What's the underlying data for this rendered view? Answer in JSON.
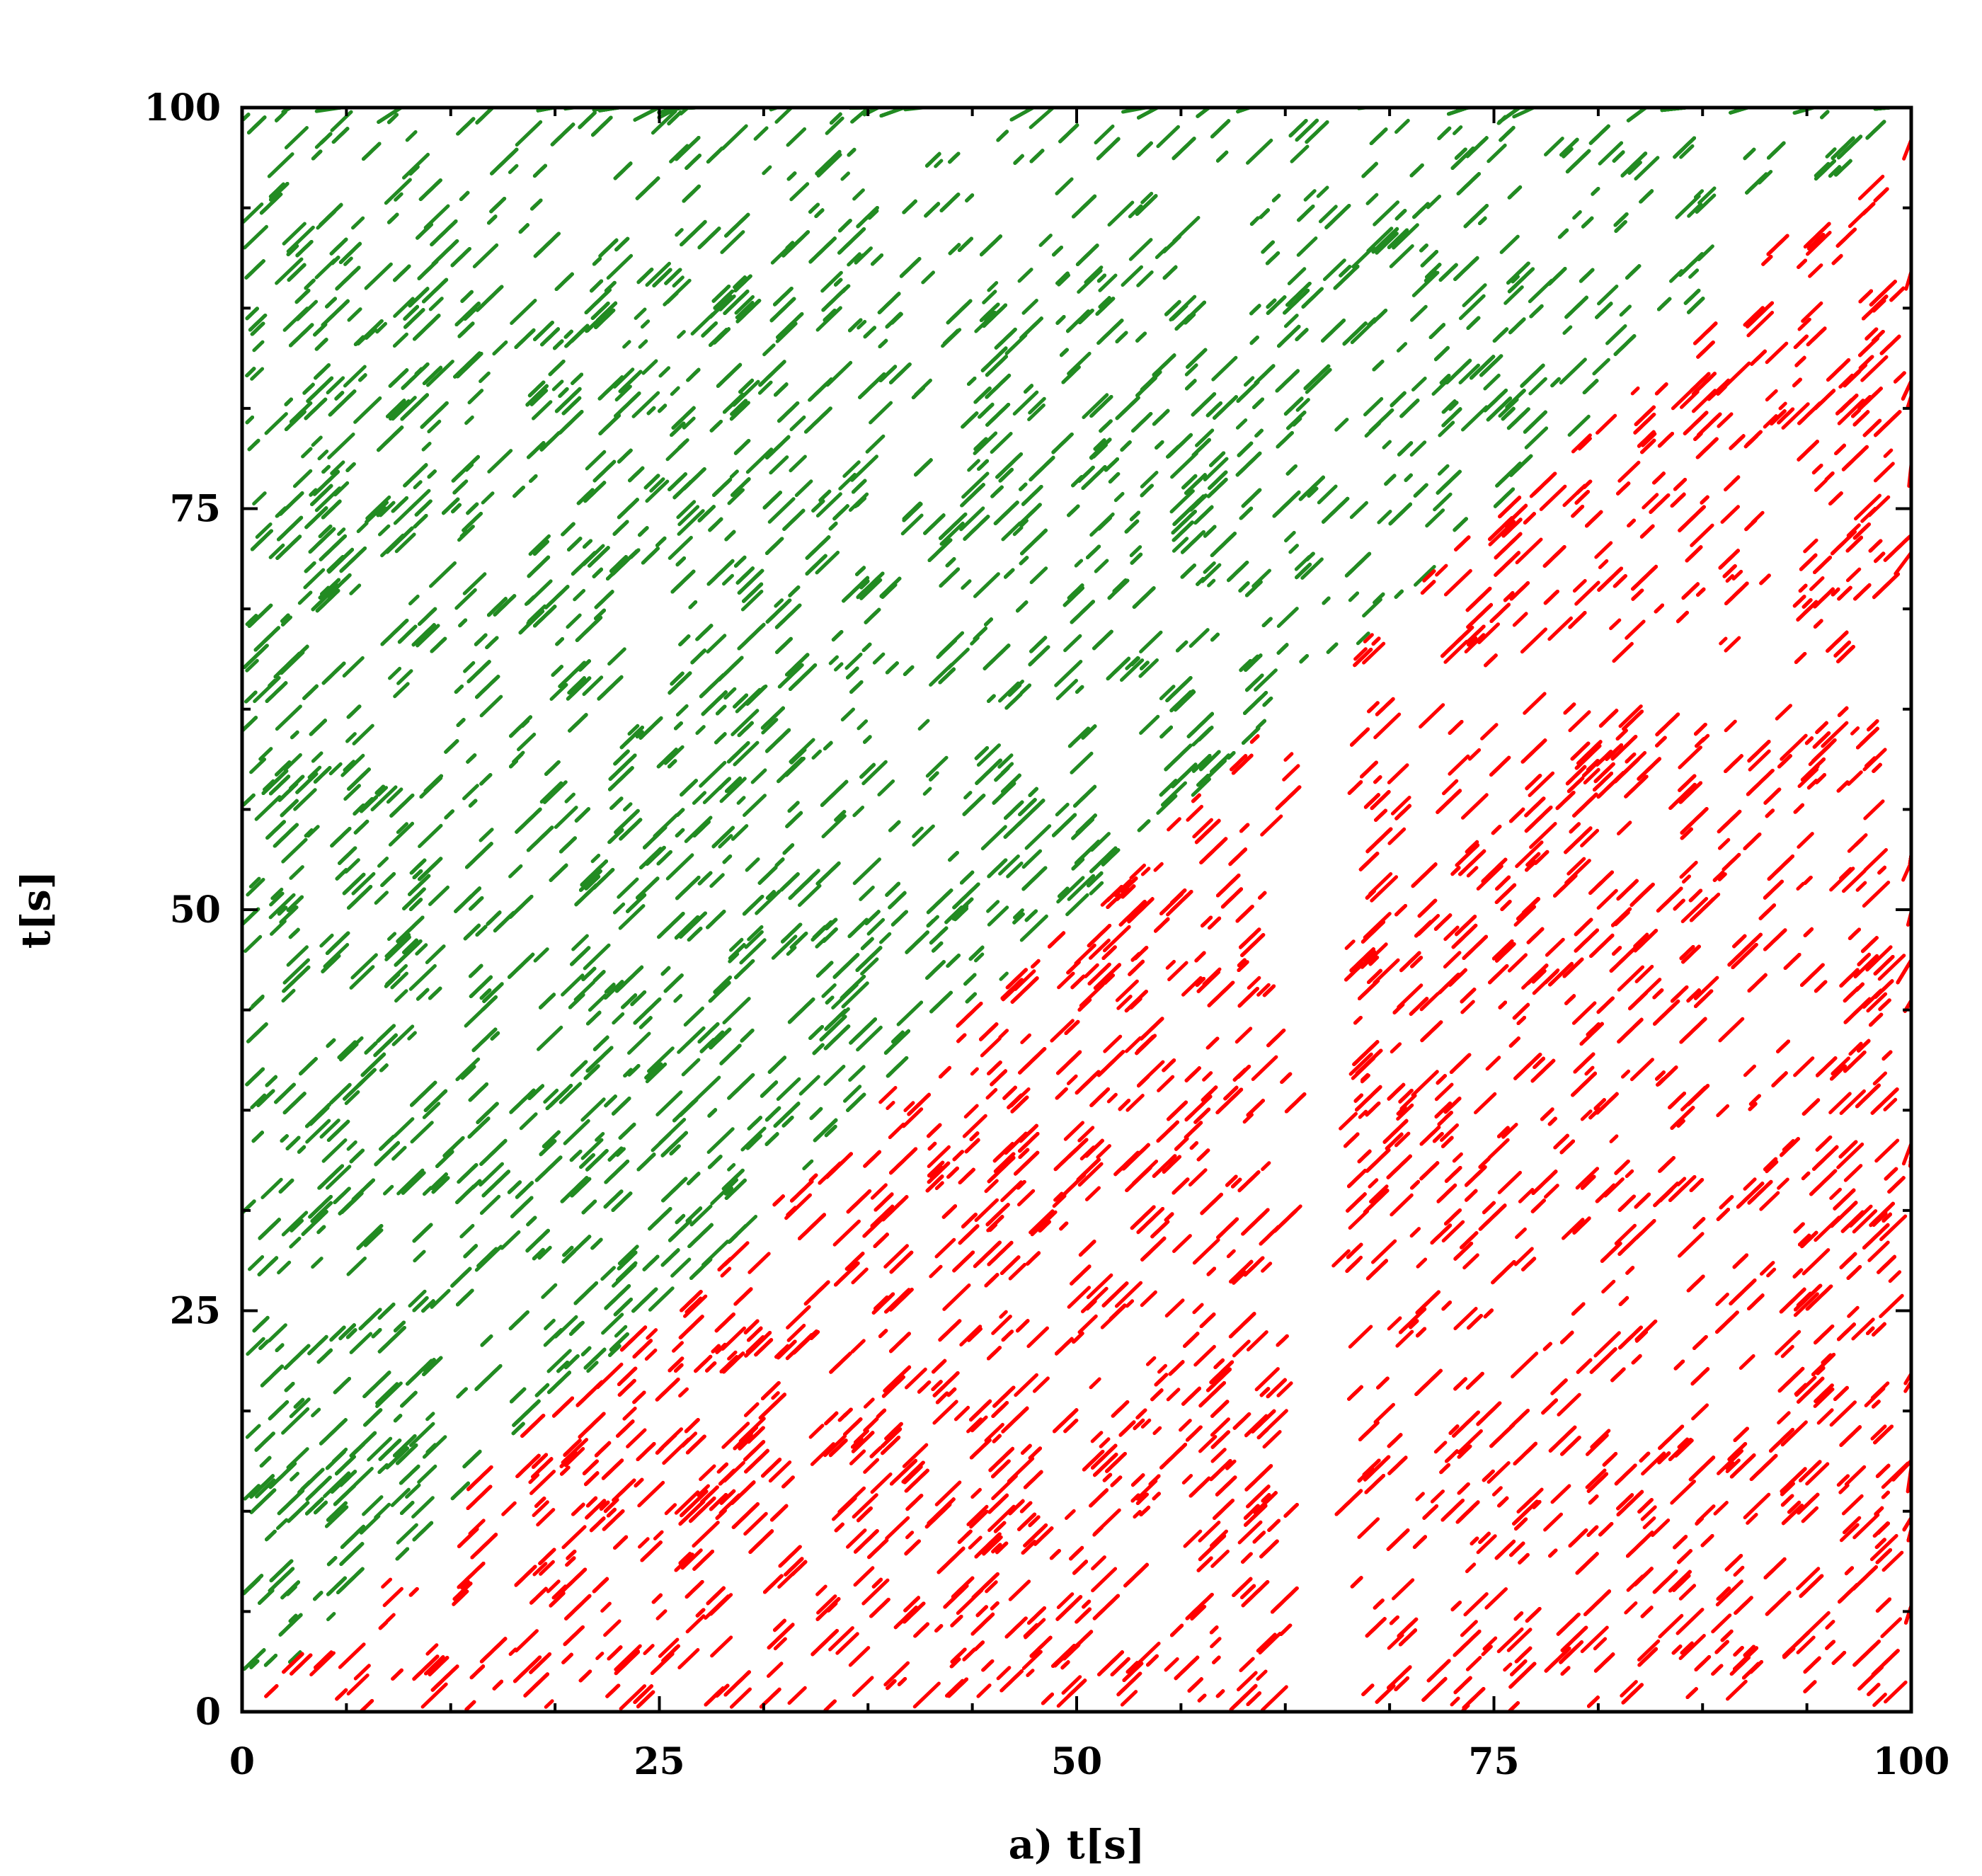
{
  "chart_data": {
    "type": "scatter",
    "subtype": "recurrence-plot",
    "xlabel": "a) t[s]",
    "ylabel": "t[s]",
    "xlim": [
      0,
      100
    ],
    "ylim": [
      0,
      100
    ],
    "xticks": [
      "0",
      "25",
      "50",
      "75",
      "100"
    ],
    "yticks": [
      "0",
      "25",
      "50",
      "75",
      "100"
    ],
    "x_tick_values": [
      0,
      25,
      50,
      75,
      100
    ],
    "y_tick_values": [
      0,
      25,
      50,
      75,
      100
    ],
    "minor_tick_step": 6.25,
    "grid": false,
    "legend": "none",
    "series": [
      {
        "region": "upper-left (above boundary)",
        "color": "#228b22",
        "symbol": "dot"
      },
      {
        "region": "lower-right (below boundary)",
        "color": "#ff0000",
        "symbol": "dot"
      }
    ],
    "boundary": {
      "description": "staircase separating green and red regions",
      "points": [
        [
          0,
          0
        ],
        [
          10.6,
          10.6
        ],
        [
          12,
          12.5
        ],
        [
          20,
          20.5
        ],
        [
          26.4,
          25.4
        ],
        [
          35.8,
          36.2
        ],
        [
          48.6,
          48.6
        ],
        [
          63,
          63
        ],
        [
          66,
          65.5
        ],
        [
          75,
          75
        ],
        [
          85,
          85
        ],
        [
          99.5,
          99.5
        ]
      ]
    },
    "white_bands": [
      {
        "axis": "x",
        "from": 62.6,
        "to": 65.3,
        "y_from": 0,
        "y_to": 63
      },
      {
        "axis": "y",
        "from": 62.5,
        "to": 65.2,
        "x_from": 62.6,
        "x_to": 100
      }
    ]
  }
}
